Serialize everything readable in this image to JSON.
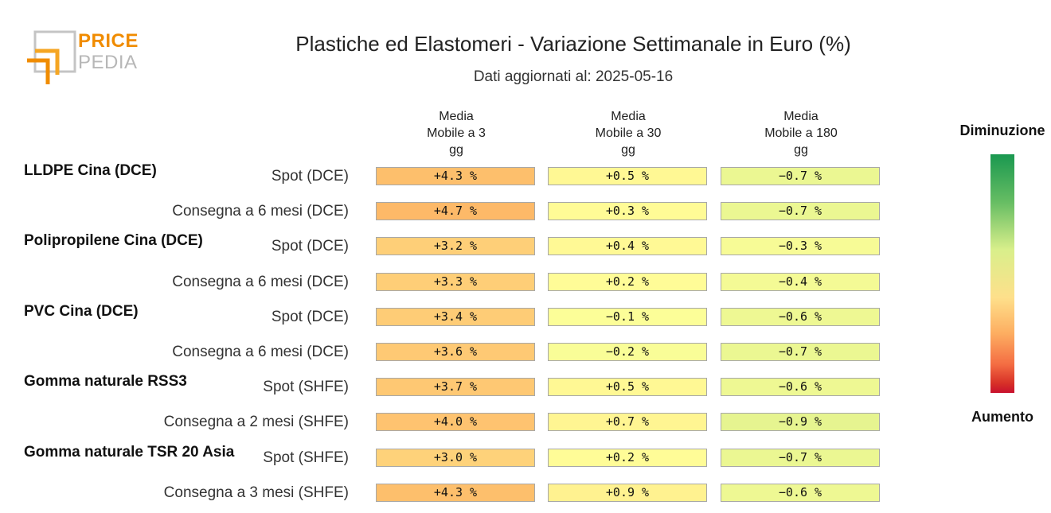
{
  "logo": {
    "line1": "PRICE",
    "line2": "PEDIA"
  },
  "title": "Plastiche ed Elastomeri - Variazione Settimanale in Euro (%)",
  "subtitle": "Dati aggiornati al: 2025-05-16",
  "legend": {
    "top": "Diminuzione",
    "bottom": "Aumento"
  },
  "chart_data": {
    "type": "table",
    "columns": [
      "Media\nMobile a 3\ngg",
      "Media\nMobile a 30\ngg",
      "Media\nMobile a 180\ngg"
    ],
    "groups": [
      {
        "name": "LLDPE Cina (DCE)",
        "rows": [
          {
            "label": "Spot (DCE)",
            "values": [
              4.3,
              0.5,
              -0.7
            ],
            "display": [
              "+4.3 %",
              "+0.5 %",
              "−0.7 %"
            ]
          },
          {
            "label": "Consegna a 6 mesi (DCE)",
            "values": [
              4.7,
              0.3,
              -0.7
            ],
            "display": [
              "+4.7 %",
              "+0.3 %",
              "−0.7 %"
            ]
          }
        ]
      },
      {
        "name": "Polipropilene Cina (DCE)",
        "rows": [
          {
            "label": "Spot (DCE)",
            "values": [
              3.2,
              0.4,
              -0.3
            ],
            "display": [
              "+3.2 %",
              "+0.4 %",
              "−0.3 %"
            ]
          },
          {
            "label": "Consegna a 6 mesi (DCE)",
            "values": [
              3.3,
              0.2,
              -0.4
            ],
            "display": [
              "+3.3 %",
              "+0.2 %",
              "−0.4 %"
            ]
          }
        ]
      },
      {
        "name": "PVC Cina (DCE)",
        "rows": [
          {
            "label": "Spot (DCE)",
            "values": [
              3.4,
              -0.1,
              -0.6
            ],
            "display": [
              "+3.4 %",
              "−0.1 %",
              "−0.6 %"
            ]
          },
          {
            "label": "Consegna a 6 mesi (DCE)",
            "values": [
              3.6,
              -0.2,
              -0.7
            ],
            "display": [
              "+3.6 %",
              "−0.2 %",
              "−0.7 %"
            ]
          }
        ]
      },
      {
        "name": "Gomma naturale RSS3",
        "rows": [
          {
            "label": "Spot (SHFE)",
            "values": [
              3.7,
              0.5,
              -0.6
            ],
            "display": [
              "+3.7 %",
              "+0.5 %",
              "−0.6 %"
            ]
          },
          {
            "label": "Consegna a 2 mesi (SHFE)",
            "values": [
              4.0,
              0.7,
              -0.9
            ],
            "display": [
              "+4.0 %",
              "+0.7 %",
              "−0.9 %"
            ]
          }
        ]
      },
      {
        "name": "Gomma naturale TSR 20 Asia",
        "rows": [
          {
            "label": "Spot (SHFE)",
            "values": [
              3.0,
              0.2,
              -0.7
            ],
            "display": [
              "+3.0 %",
              "+0.2 %",
              "−0.7 %"
            ]
          },
          {
            "label": "Consegna a 3 mesi (SHFE)",
            "values": [
              4.3,
              0.9,
              -0.6
            ],
            "display": [
              "+4.3 %",
              "+0.9 %",
              "−0.6 %"
            ]
          }
        ]
      }
    ],
    "colorscale": {
      "low_label": "Diminuzione",
      "high_label": "Aumento",
      "low_color": "#1a9850",
      "mid_color": "#fee08b",
      "high_color": "#d73027"
    }
  }
}
